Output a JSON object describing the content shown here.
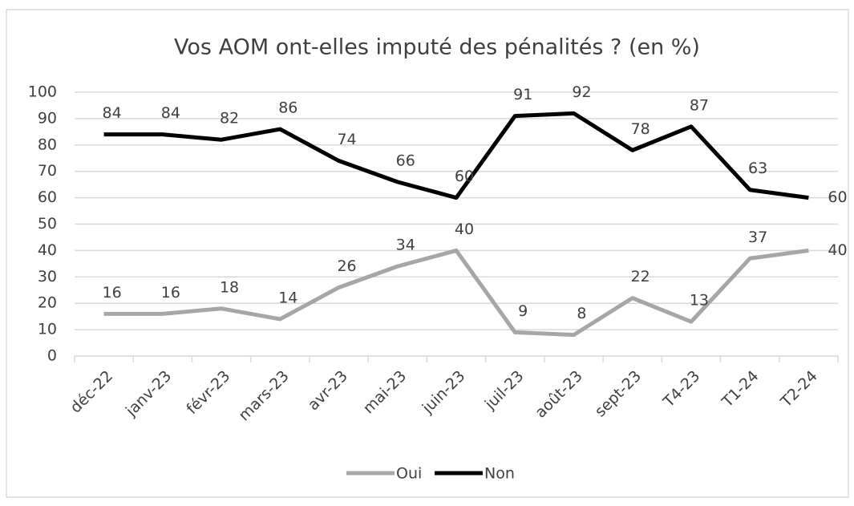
{
  "chart_data": {
    "type": "line",
    "title": "Vos AOM ont-elles imputé des pénalités ? (en %)",
    "categories": [
      "déc-22",
      "janv-23",
      "févr-23",
      "mars-23",
      "avr-23",
      "mai-23",
      "juin-23",
      "juil-23",
      "août-23",
      "sept-23",
      "T4-23",
      "T1-24",
      "T2-24"
    ],
    "series": [
      {
        "name": "Oui",
        "color": "#a6a6a6",
        "values": [
          16,
          16,
          18,
          14,
          26,
          34,
          40,
          9,
          8,
          22,
          13,
          37,
          40
        ]
      },
      {
        "name": "Non",
        "color": "#000000",
        "values": [
          84,
          84,
          82,
          86,
          74,
          66,
          60,
          91,
          92,
          78,
          87,
          63,
          60
        ]
      }
    ],
    "ylim": [
      0,
      100
    ],
    "yticks": [
      0,
      10,
      20,
      30,
      40,
      50,
      60,
      70,
      80,
      90,
      100
    ],
    "grid": true,
    "legend": "bottom"
  }
}
